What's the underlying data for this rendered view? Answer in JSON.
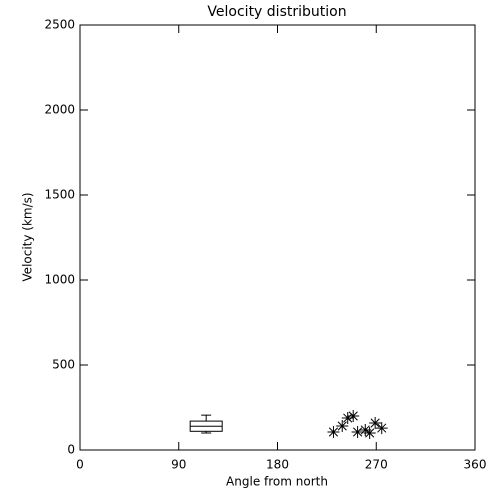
{
  "chart_data": {
    "type": "scatter",
    "title": "Velocity distribution",
    "xlabel": "Angle from north",
    "ylabel": "Velocity (km/s)",
    "x": [
      231,
      239,
      244,
      249,
      253,
      260,
      264,
      269,
      275
    ],
    "values": [
      106,
      141,
      188,
      200,
      106,
      118,
      100,
      159,
      129
    ],
    "marker": "star",
    "color": "#000000",
    "boxplot": {
      "x": 115,
      "min": 100,
      "q1": 110,
      "median": 140,
      "q3": 170,
      "max": 205
    },
    "xlim": [
      0,
      360
    ],
    "xticks": [
      0,
      90,
      180,
      270,
      360
    ],
    "ylim": [
      0,
      2500
    ],
    "yticks": [
      0,
      500,
      1000,
      1500,
      2000,
      2500
    ]
  }
}
